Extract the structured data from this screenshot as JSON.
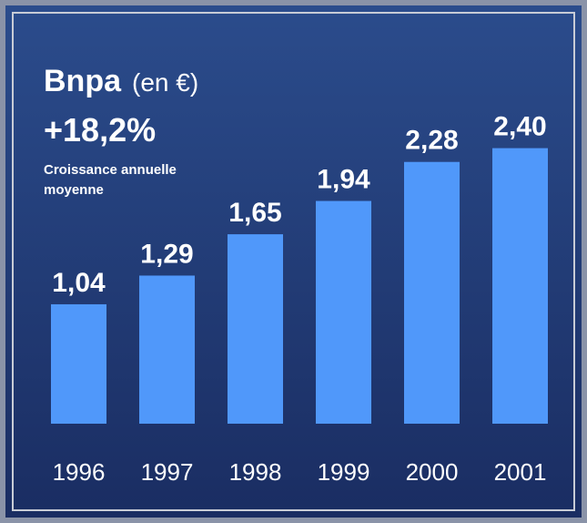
{
  "chart_data": {
    "type": "bar",
    "title": "Bnpa",
    "title_unit": "(en €)",
    "annotation": "+18,2%",
    "annotation_note": [
      "Croissance annuelle",
      "moyenne"
    ],
    "categories": [
      "1996",
      "1997",
      "1998",
      "1999",
      "2000",
      "2001"
    ],
    "values": [
      1.04,
      1.29,
      1.65,
      1.94,
      2.28,
      2.4
    ],
    "value_labels": [
      "1,04",
      "1,29",
      "1,65",
      "1,94",
      "2,28",
      "2,40"
    ],
    "color": "#5098fa"
  }
}
